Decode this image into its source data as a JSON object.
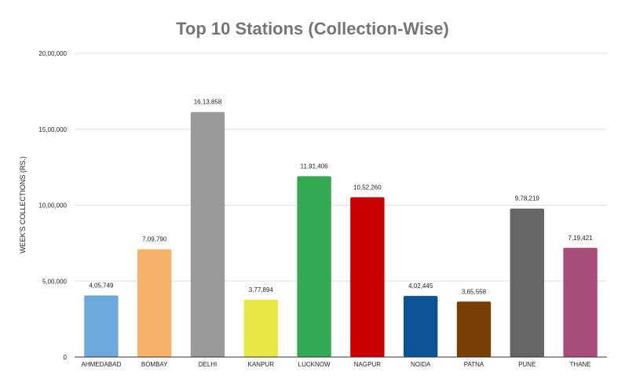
{
  "chart_data": {
    "type": "bar",
    "title": "Top 10 Stations (Collection-Wise)",
    "xlabel": "",
    "ylabel": "WEEK'S COLLECTIONS (RS.)",
    "ylim": [
      0,
      2000000
    ],
    "grid": true,
    "y_ticks": [
      0,
      500000,
      1000000,
      1500000,
      2000000
    ],
    "y_tick_labels": [
      "0",
      "5,00,000",
      "10,00,000",
      "15,00,000",
      "20,00,000"
    ],
    "categories": [
      "AHMEDABAD",
      "BOMBAY",
      "DELHI",
      "KANPUR",
      "LUCKNOW",
      "NAGPUR",
      "NOIDA",
      "PATNA",
      "PUNE",
      "THANE"
    ],
    "values": [
      405749,
      709790,
      1613858,
      377894,
      1191406,
      1052260,
      402445,
      365558,
      978219,
      719421
    ],
    "data_labels": [
      "4,05,749",
      "7,09,790",
      "16,13,858",
      "3,77,894",
      "11,91,406",
      "10,52,260",
      "4,02,445",
      "3,65,558",
      "9,78,219",
      "7,19,421"
    ],
    "colors": [
      "#6fa8dc",
      "#f6b26b",
      "#999999",
      "#e8e846",
      "#34a853",
      "#cc0000",
      "#0b5394",
      "#783f04",
      "#666666",
      "#a64d79"
    ]
  }
}
